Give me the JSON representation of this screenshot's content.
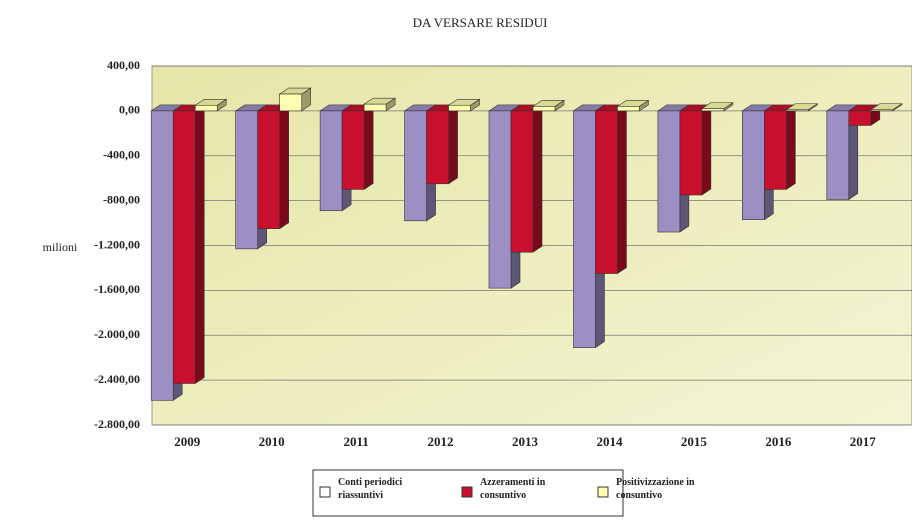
{
  "chart_data": {
    "type": "bar3d",
    "title": "DA VERSARE RESIDUI",
    "y_label": "milioni",
    "categories": [
      "2009",
      "2010",
      "2011",
      "2012",
      "2013",
      "2014",
      "2015",
      "2016",
      "2017"
    ],
    "series": [
      {
        "name": "Conti periodici riassuntivi",
        "color": "#9b8fc4",
        "values": [
          -2580,
          -1230,
          -890,
          -980,
          -1580,
          -2110,
          -1080,
          -970,
          -790
        ]
      },
      {
        "name": "Azzeramenti in consuntivo",
        "color": "#c8102e",
        "values": [
          -2430,
          -1050,
          -700,
          -650,
          -1260,
          -1450,
          -750,
          -700,
          -130
        ]
      },
      {
        "name": "Positivizzazione in consuntivo",
        "color": "#ffffb0",
        "values": [
          50,
          150,
          60,
          50,
          40,
          40,
          20,
          10,
          10
        ]
      }
    ],
    "ylim": [
      -2800,
      400
    ],
    "yticks": [
      {
        "value": -2800,
        "label": "-2.800,00"
      },
      {
        "value": -2400,
        "label": "-2.400,00"
      },
      {
        "value": -2000,
        "label": "-2.000,00"
      },
      {
        "value": -1600,
        "label": "-1.600,00"
      },
      {
        "value": -1200,
        "label": "-1.200,00"
      },
      {
        "value": -800,
        "label": "-800,00"
      },
      {
        "value": -400,
        "label": "-400,00"
      },
      {
        "value": 0,
        "label": "0,00"
      },
      {
        "value": 400,
        "label": "400,00"
      }
    ],
    "grid": true
  }
}
